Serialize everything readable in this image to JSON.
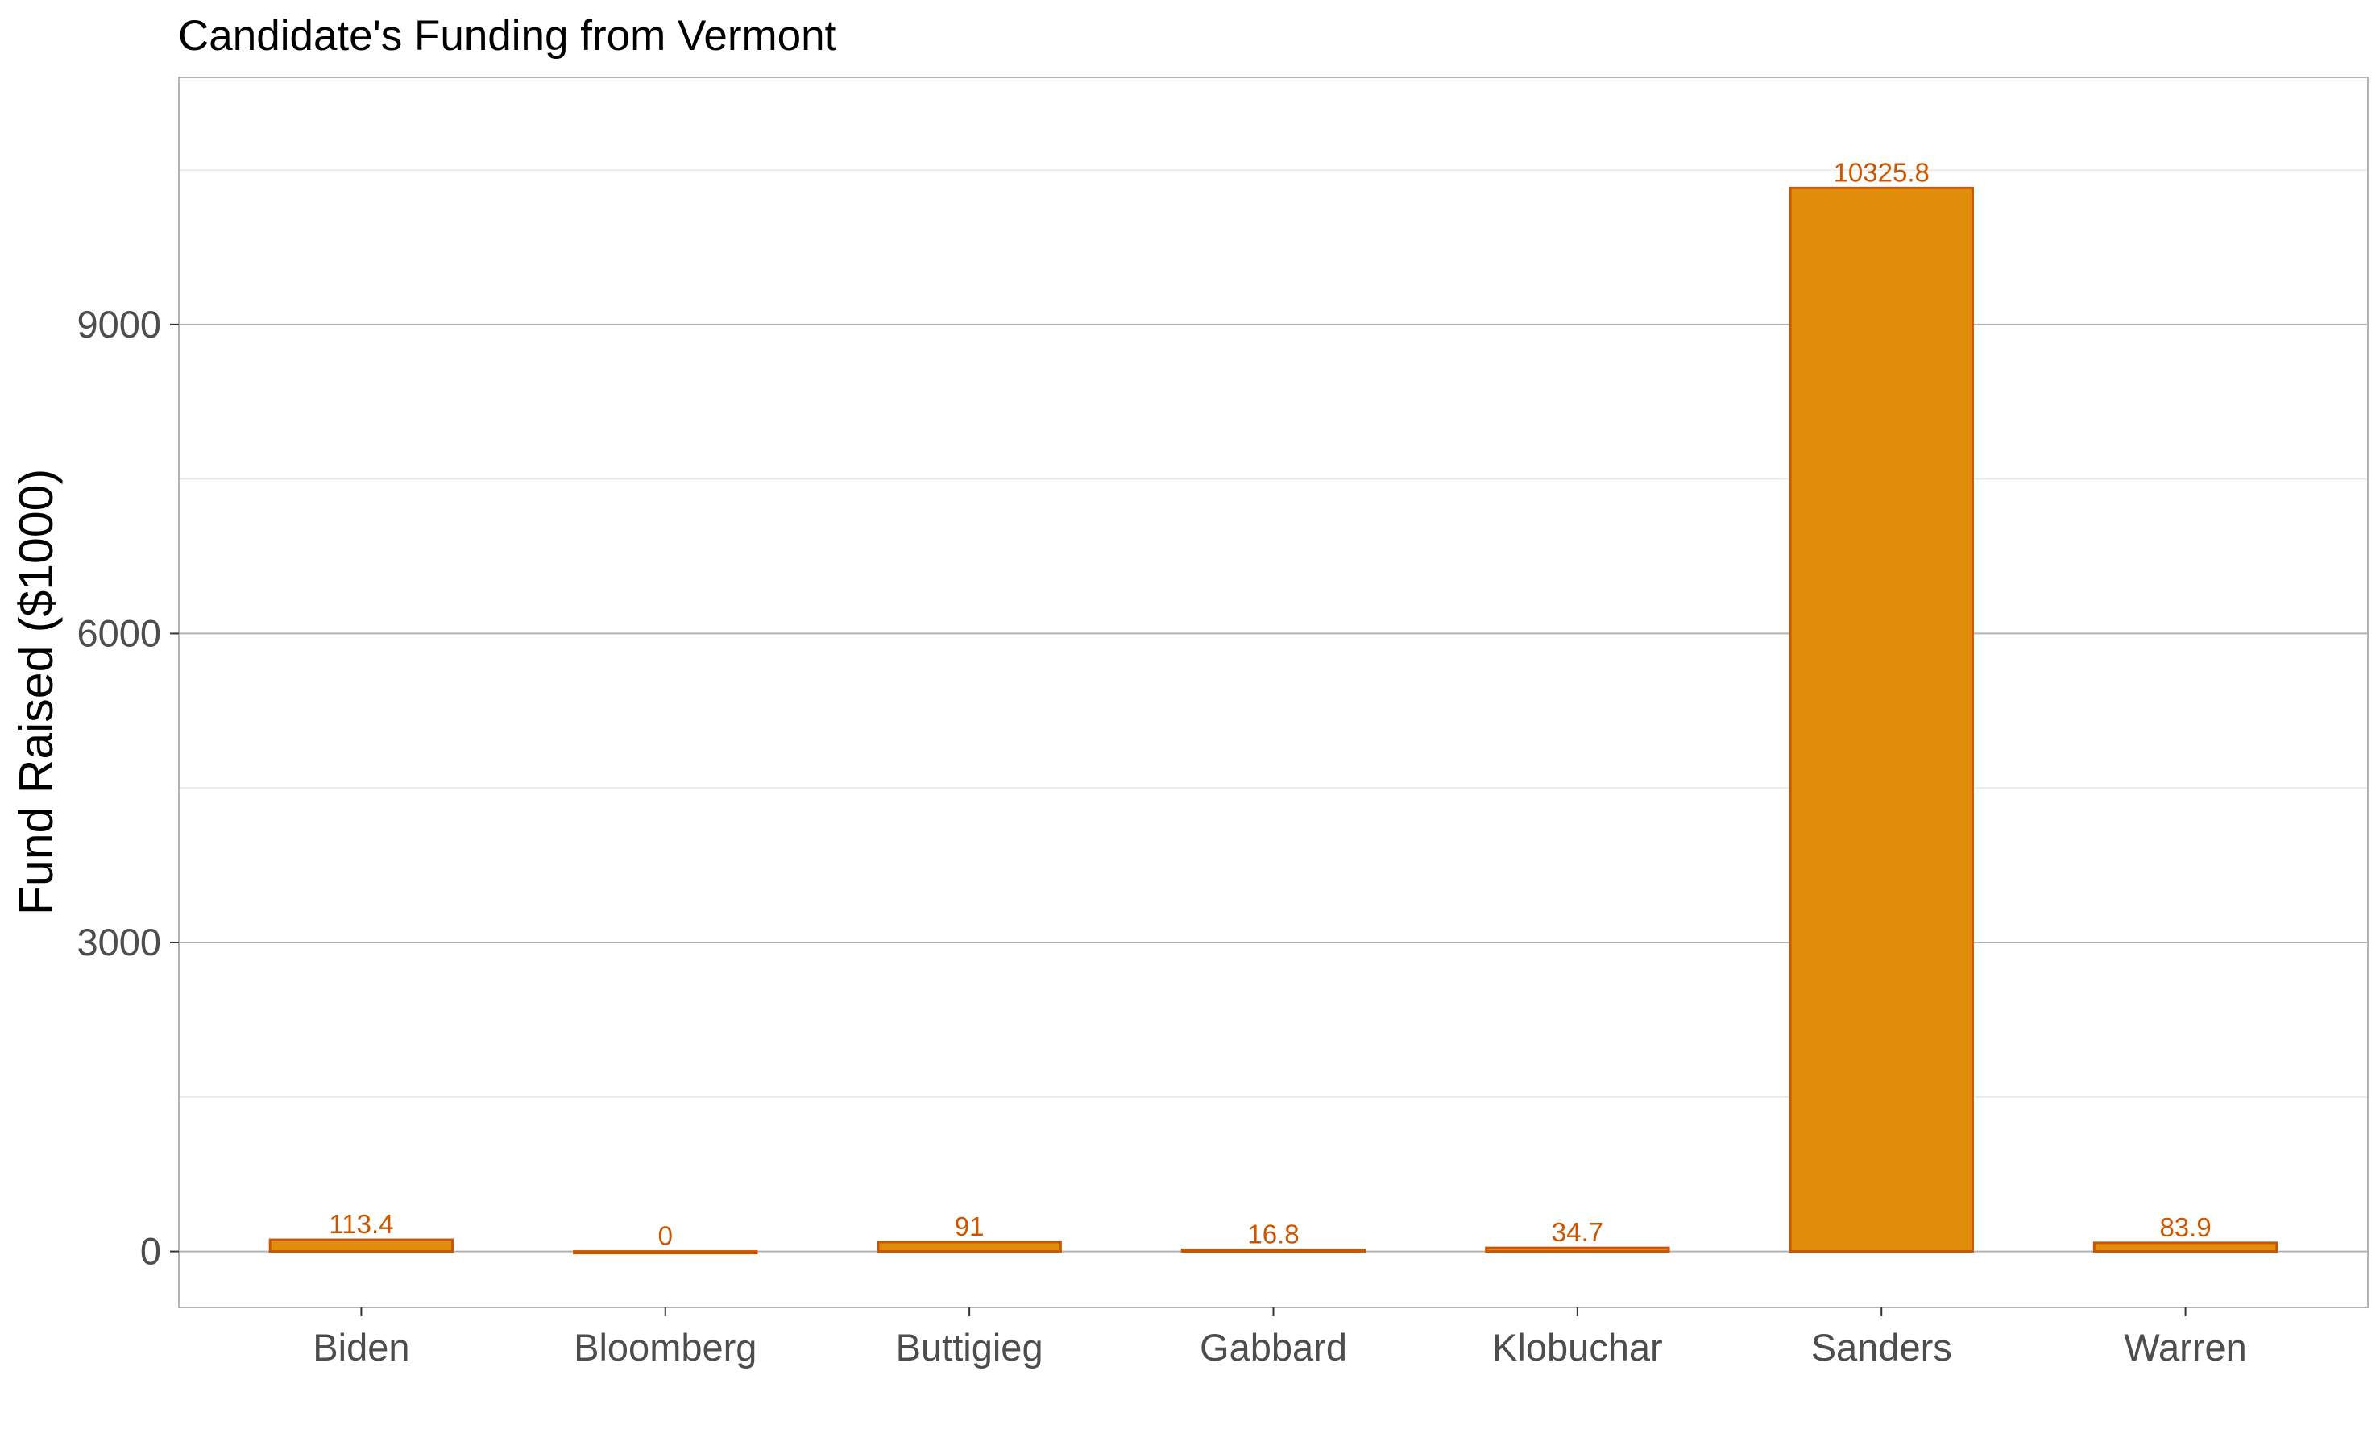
{
  "chart_data": {
    "type": "bar",
    "title": "Candidate's Funding from Vermont",
    "xlabel": "",
    "ylabel": "Fund Raised ($1000)",
    "categories": [
      "Biden",
      "Bloomberg",
      "Buttigieg",
      "Gabbard",
      "Klobuchar",
      "Sanders",
      "Warren"
    ],
    "values": [
      113.4,
      0,
      91,
      16.8,
      34.7,
      10325.8,
      83.9
    ],
    "value_labels": [
      "113.4",
      "0",
      "91",
      "16.8",
      "34.7",
      "10325.8",
      "83.9"
    ],
    "ylim": [
      -543,
      11400
    ],
    "yticks": [
      0,
      3000,
      6000,
      9000
    ],
    "ytick_labels": [
      "0",
      "3000",
      "6000",
      "9000"
    ],
    "grid": true,
    "legend": "none",
    "colors": {
      "bar_fill": "#E08E0B",
      "bar_outline": "#CC5500",
      "data_label": "#CC5500",
      "grid_major": "#B3B3B3",
      "grid_minor": "#E6E6E6",
      "panel_border": "#B3B3B3",
      "tick_text": "#4D4D4D"
    }
  }
}
